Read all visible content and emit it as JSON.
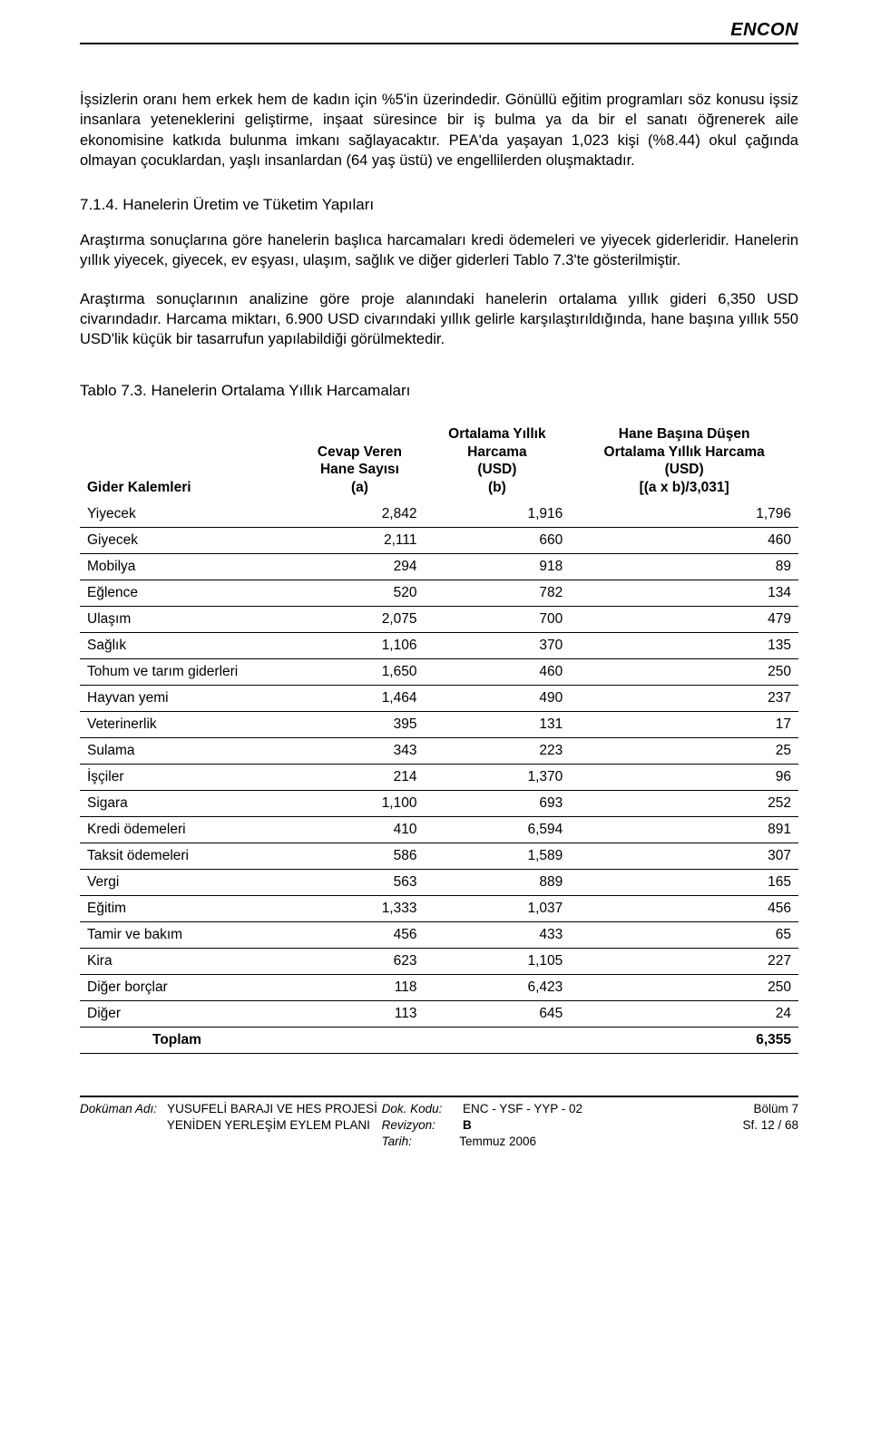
{
  "brand": "ENCON",
  "paragraphs": {
    "p1": "İşsizlerin oranı hem erkek hem de kadın için %5'in üzerindedir. Gönüllü eğitim programları söz konusu işsiz insanlara yeteneklerini geliştirme, inşaat süresince bir iş bulma ya da bir el sanatı öğrenerek aile ekonomisine katkıda bulunma imkanı sağlayacaktır. PEA'da yaşayan 1,023 kişi (%8.44) okul çağında olmayan çocuklardan, yaşlı insanlardan (64 yaş üstü) ve engellilerden oluşmaktadır.",
    "heading_714": "7.1.4.  Hanelerin Üretim ve Tüketim Yapıları",
    "p2": "Araştırma sonuçlarına göre hanelerin başlıca harcamaları kredi ödemeleri ve yiyecek giderleridir. Hanelerin yıllık yiyecek, giyecek, ev eşyası, ulaşım, sağlık ve diğer giderleri Tablo 7.3'te gösterilmiştir.",
    "p3": "Araştırma sonuçlarının analizine göre proje alanındaki hanelerin ortalama yıllık gideri 6,350 USD civarındadır. Harcama miktarı, 6.900 USD civarındaki yıllık gelirle karşılaştırıldığında, hane başına yıllık 550 USD'lik küçük bir tasarrufun yapılabildiği görülmektedir."
  },
  "table": {
    "title": "Tablo 7.3.   Hanelerin Ortalama Yıllık Harcamaları",
    "headers": {
      "c0": "Gider Kalemleri",
      "c1_l1": "Cevap Veren",
      "c1_l2": "Hane Sayısı",
      "c1_l3": "(a)",
      "c2_l1": "Ortalama Yıllık",
      "c2_l2": "Harcama",
      "c2_l3": "(USD)",
      "c2_l4": "(b)",
      "c3_l1": "Hane Başına Düşen",
      "c3_l2": "Ortalama Yıllık Harcama",
      "c3_l3": "(USD)",
      "c3_l4": "[(a x b)/3,031]"
    },
    "rows": [
      {
        "label": "Yiyecek",
        "a": "2,842",
        "b": "1,916",
        "c": "1,796"
      },
      {
        "label": "Giyecek",
        "a": "2,111",
        "b": "660",
        "c": "460"
      },
      {
        "label": "Mobilya",
        "a": "294",
        "b": "918",
        "c": "89"
      },
      {
        "label": "Eğlence",
        "a": "520",
        "b": "782",
        "c": "134"
      },
      {
        "label": "Ulaşım",
        "a": "2,075",
        "b": "700",
        "c": "479"
      },
      {
        "label": "Sağlık",
        "a": "1,106",
        "b": "370",
        "c": "135"
      },
      {
        "label": "Tohum ve tarım giderleri",
        "a": "1,650",
        "b": "460",
        "c": "250"
      },
      {
        "label": "Hayvan yemi",
        "a": "1,464",
        "b": "490",
        "c": "237"
      },
      {
        "label": "Veterinerlik",
        "a": "395",
        "b": "131",
        "c": "17"
      },
      {
        "label": "Sulama",
        "a": "343",
        "b": "223",
        "c": "25"
      },
      {
        "label": "İşçiler",
        "a": "214",
        "b": "1,370",
        "c": "96"
      },
      {
        "label": "Sigara",
        "a": "1,100",
        "b": "693",
        "c": "252"
      },
      {
        "label": "Kredi ödemeleri",
        "a": "410",
        "b": "6,594",
        "c": "891"
      },
      {
        "label": "Taksit ödemeleri",
        "a": "586",
        "b": "1,589",
        "c": "307"
      },
      {
        "label": "Vergi",
        "a": "563",
        "b": "889",
        "c": "165"
      },
      {
        "label": "Eğitim",
        "a": "1,333",
        "b": "1,037",
        "c": "456"
      },
      {
        "label": "Tamir ve bakım",
        "a": "456",
        "b": "433",
        "c": "65"
      },
      {
        "label": "Kira",
        "a": "623",
        "b": "1,105",
        "c": "227"
      },
      {
        "label": "Diğer borçlar",
        "a": "118",
        "b": "6,423",
        "c": "250"
      },
      {
        "label": "Diğer",
        "a": "113",
        "b": "645",
        "c": "24"
      }
    ],
    "total_label": "Toplam",
    "total_value": "6,355"
  },
  "footer": {
    "doc_name_lbl": "Doküman Adı:",
    "doc_name_1": "YUSUFELİ BARAJI VE HES PROJESİ",
    "doc_name_2": "YENİDEN YERLEŞİM EYLEM PLANI",
    "doc_code_lbl": "Dok. Kodu:",
    "doc_code": "ENC - YSF - YYP - 02",
    "rev_lbl": "Revizyon:",
    "rev": "B",
    "date_lbl": "Tarih:",
    "date": "Temmuz 2006",
    "section": "Bölüm 7",
    "page": "Sf. 12 / 68"
  }
}
